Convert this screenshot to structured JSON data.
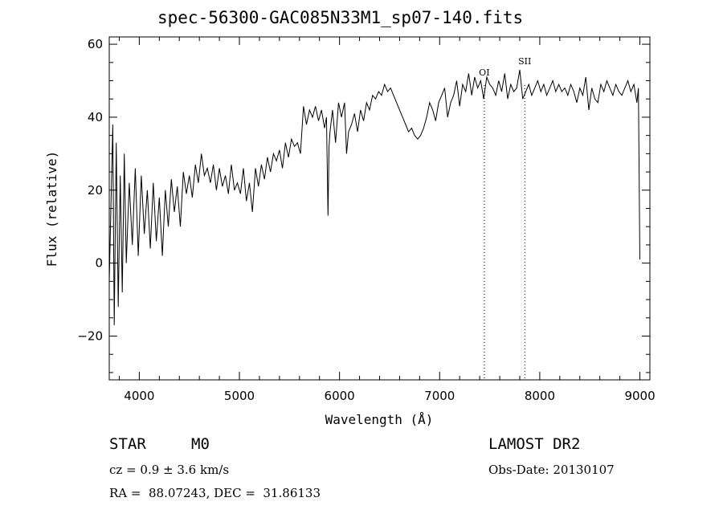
{
  "chart_data": {
    "type": "line",
    "title": "spec-56300-GAC085N33M1_sp07-140.fits",
    "xlabel": "Wavelength (Å)",
    "ylabel": "Flux (relative)",
    "xlim": [
      3700,
      9100
    ],
    "ylim": [
      -32,
      62
    ],
    "xticks": [
      4000,
      5000,
      6000,
      7000,
      8000,
      9000
    ],
    "xtick_labels": [
      "4000",
      "5000",
      "6000",
      "7000",
      "8000",
      "9000"
    ],
    "yticks": [
      -20,
      0,
      20,
      40,
      60
    ],
    "ytick_labels": [
      "−20",
      "0",
      "20",
      "40",
      "60"
    ],
    "grid": false,
    "legend": "none",
    "line_markers": [
      {
        "label": "OI",
        "x": 7446
      },
      {
        "label": "SII",
        "x": 7850
      }
    ],
    "series": [
      {
        "x": [
          3700,
          3735,
          3750,
          3770,
          3790,
          3810,
          3830,
          3850,
          3870,
          3900,
          3930,
          3960,
          3990,
          4020,
          4050,
          4080,
          4110,
          4140,
          4170,
          4200,
          4230,
          4260,
          4290,
          4320,
          4350,
          4380,
          4410,
          4440,
          4470,
          4500,
          4530,
          4560,
          4590,
          4620,
          4650,
          4680,
          4710,
          4740,
          4770,
          4800,
          4830,
          4860,
          4890,
          4920,
          4950,
          4980,
          5010,
          5040,
          5070,
          5100,
          5130,
          5160,
          5190,
          5220,
          5250,
          5280,
          5310,
          5340,
          5370,
          5400,
          5430,
          5460,
          5490,
          5520,
          5550,
          5580,
          5610,
          5640,
          5670,
          5700,
          5730,
          5760,
          5790,
          5820,
          5850,
          5870,
          5885,
          5895,
          5905,
          5930,
          5960,
          5990,
          6020,
          6050,
          6070,
          6090,
          6120,
          6150,
          6180,
          6210,
          6240,
          6270,
          6300,
          6330,
          6360,
          6390,
          6420,
          6450,
          6480,
          6510,
          6540,
          6570,
          6600,
          6630,
          6660,
          6690,
          6720,
          6750,
          6780,
          6810,
          6840,
          6870,
          6900,
          6930,
          6960,
          6990,
          7020,
          7050,
          7080,
          7110,
          7140,
          7170,
          7200,
          7230,
          7260,
          7290,
          7320,
          7350,
          7380,
          7410,
          7440,
          7470,
          7500,
          7530,
          7560,
          7590,
          7620,
          7650,
          7680,
          7710,
          7740,
          7770,
          7800,
          7830,
          7860,
          7890,
          7920,
          7950,
          7980,
          8010,
          8040,
          8070,
          8100,
          8130,
          8160,
          8190,
          8220,
          8250,
          8280,
          8310,
          8340,
          8370,
          8400,
          8430,
          8460,
          8490,
          8520,
          8550,
          8580,
          8610,
          8640,
          8670,
          8700,
          8730,
          8760,
          8790,
          8820,
          8850,
          8880,
          8910,
          8940,
          8970,
          8985,
          9000
        ],
        "y": [
          -5,
          38,
          -17,
          33,
          -12,
          24,
          -8,
          30,
          0,
          22,
          5,
          26,
          2,
          24,
          8,
          20,
          4,
          22,
          6,
          18,
          2,
          20,
          10,
          23,
          14,
          21,
          10,
          25,
          19,
          24,
          18,
          27,
          22,
          30,
          24,
          26,
          22,
          27,
          20,
          26,
          21,
          24,
          19,
          27,
          20,
          22,
          19,
          26,
          17,
          22,
          14,
          26,
          21,
          27,
          23,
          29,
          25,
          30,
          28,
          31,
          26,
          33,
          29,
          34,
          32,
          33,
          30,
          43,
          38,
          42,
          40,
          43,
          39,
          42,
          37,
          40,
          13,
          32,
          36,
          42,
          33,
          44,
          40,
          44,
          30,
          36,
          38,
          41,
          36,
          42,
          39,
          44,
          42,
          46,
          45,
          47,
          46,
          49,
          47,
          48,
          46,
          44,
          42,
          40,
          38,
          36,
          37,
          35,
          34,
          35,
          37,
          40,
          44,
          42,
          39,
          44,
          46,
          48,
          40,
          44,
          46,
          50,
          43,
          49,
          47,
          52,
          46,
          51,
          48,
          50,
          45,
          51,
          49,
          48,
          46,
          50,
          47,
          52,
          45,
          49,
          47,
          48,
          53,
          45,
          47,
          49,
          46,
          48,
          50,
          47,
          49,
          46,
          48,
          50,
          47,
          49,
          47,
          48,
          46,
          49,
          47,
          44,
          48,
          46,
          51,
          42,
          48,
          45,
          44,
          49,
          47,
          50,
          48,
          46,
          49,
          47,
          46,
          48,
          50,
          47,
          49,
          44,
          48,
          1
        ]
      }
    ]
  },
  "bottom_left": {
    "object_type": "STAR",
    "subclass": "M0",
    "cz": "cz = 0.9 ± 3.6 km/s",
    "coords": "RA =  88.07243, DEC =  31.86133"
  },
  "bottom_right": {
    "release": "LAMOST DR2",
    "obs_date": "Obs-Date: 20130107"
  }
}
